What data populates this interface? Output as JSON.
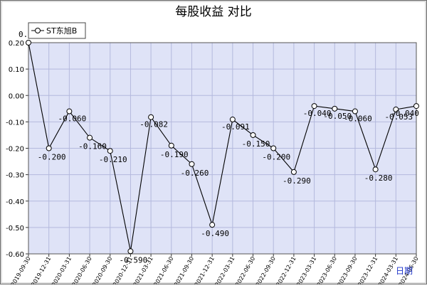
{
  "chart_data": {
    "type": "line",
    "title": "每股收益  对比",
    "xaxis_unit": "日期",
    "ylim": [
      -0.6,
      0.2
    ],
    "yticks": [
      "0.20",
      "0.10",
      "0.00",
      "-0.10",
      "-0.20",
      "-0.30",
      "-0.40",
      "-0.50",
      "-0.60"
    ],
    "categories": [
      "2019-09-30",
      "2019-12-31",
      "2020-03-31",
      "2020-06-30",
      "2020-09-30",
      "2020-12-31",
      "2021-03-31",
      "2021-06-30",
      "2021-09-30",
      "2021-12-31",
      "2022-03-31",
      "2022-06-30",
      "2022-09-30",
      "2022-12-31",
      "2023-03-31",
      "2023-06-30",
      "2023-09-30",
      "2023-12-31",
      "2024-03-31",
      "2024-06-30"
    ],
    "series": [
      {
        "name": "ST东旭B",
        "values": [
          0.2,
          -0.2,
          -0.06,
          -0.16,
          -0.21,
          -0.59,
          -0.082,
          -0.19,
          -0.26,
          -0.49,
          -0.091,
          -0.15,
          -0.2,
          -0.29,
          -0.04,
          -0.05,
          -0.06,
          -0.28,
          -0.053,
          -0.04
        ],
        "labels": [
          "0.2",
          "-0.200",
          "-0.060",
          "-0.160",
          "-0.210",
          "-0.590",
          "-0.082",
          "-0.190",
          "-0.260",
          "-0.490",
          "-0.091",
          "-0.150",
          "-0.200",
          "-0.290",
          "-0.040",
          "-0.050",
          "-0.060",
          "-0.280",
          "-0.053",
          "-0.040"
        ]
      }
    ],
    "legend_position": "top-left",
    "grid": true,
    "colors": {
      "plot_bg": "#dfe3f7",
      "grid": "#b4b9dd",
      "line": "#000000",
      "marker_fill": "#ffffff",
      "frame": "#6b6b6b",
      "axis_unit_text": "#1f35c9"
    }
  }
}
